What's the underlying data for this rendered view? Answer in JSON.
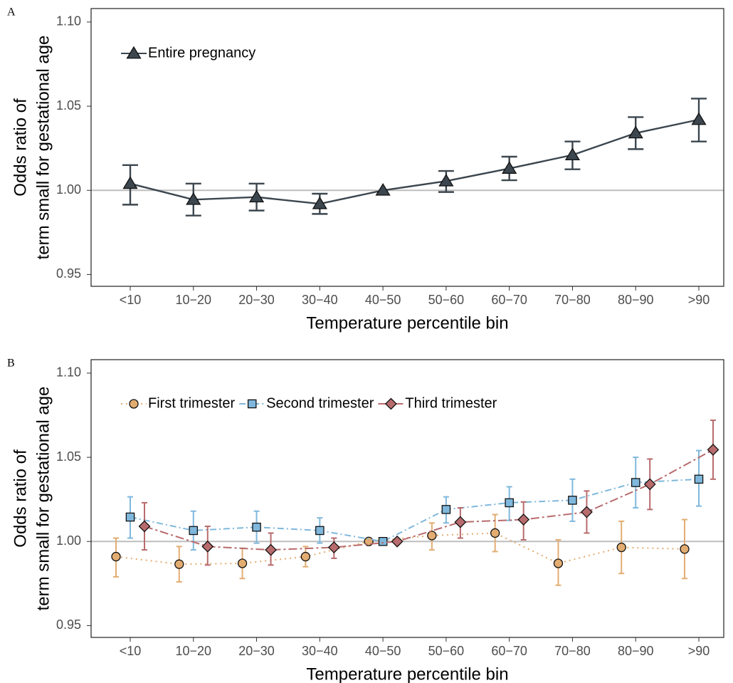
{
  "chart_data": [
    {
      "type": "line",
      "panel_label": "A",
      "xlabel": "Temperature percentile bin",
      "ylabel": [
        "Odds ratio of",
        "term small for gestational age"
      ],
      "categories": [
        "<10",
        "10−20",
        "20−30",
        "30−40",
        "40−50",
        "50−60",
        "60−70",
        "70−80",
        "80−90",
        ">90"
      ],
      "ylim": [
        0.943,
        1.108
      ],
      "yticks": [
        0.95,
        {
          "value": 1,
          "label": "1.00"
        },
        1.05,
        {
          "value": 1.1,
          "label": "1.10"
        }
      ],
      "hline": 1,
      "legend": "top-left",
      "series": [
        {
          "name": "Entire pregnancy",
          "color": "#3c464e",
          "marker": "triangle",
          "dash": "solid",
          "values": [
            1.004,
            0.9945,
            0.996,
            0.992,
            1.0,
            1.0055,
            1.013,
            1.021,
            1.034,
            1.042
          ],
          "lower": [
            0.9915,
            0.985,
            0.988,
            0.986,
            null,
            0.999,
            1.006,
            1.0125,
            1.0245,
            1.029
          ],
          "upper": [
            1.015,
            1.004,
            1.004,
            0.998,
            null,
            1.0115,
            1.02,
            1.029,
            1.0435,
            1.0545
          ]
        }
      ]
    },
    {
      "type": "line",
      "panel_label": "B",
      "xlabel": "Temperature percentile bin",
      "ylabel": [
        "Odds ratio of",
        "term small for gestational age"
      ],
      "categories": [
        "<10",
        "10−20",
        "20−30",
        "30−40",
        "40−50",
        "50−60",
        "60−70",
        "70−80",
        "80−90",
        ">90"
      ],
      "ylim": [
        0.943,
        1.108
      ],
      "yticks": [
        0.95,
        {
          "value": 1,
          "label": "1.00"
        },
        1.05,
        {
          "value": 1.1,
          "label": "1.10"
        }
      ],
      "hline": 1,
      "legend": "top-left",
      "series": [
        {
          "name": "First trimester",
          "color": "#e3ad72",
          "marker": "circle",
          "dash": "dotted",
          "values": [
            0.991,
            0.9865,
            0.987,
            0.991,
            1.0,
            1.0035,
            1.005,
            0.987,
            0.9965,
            0.9955
          ],
          "lower": [
            0.979,
            0.976,
            0.978,
            0.985,
            null,
            0.995,
            0.994,
            0.974,
            0.981,
            0.978
          ],
          "upper": [
            1.002,
            0.997,
            0.996,
            0.997,
            null,
            1.011,
            1.016,
            1.001,
            1.012,
            1.013
          ]
        },
        {
          "name": "Second trimester",
          "color": "#7fb8dc",
          "marker": "square",
          "dash": "dashdot",
          "values": [
            1.0145,
            1.0065,
            1.0085,
            1.0065,
            1.0,
            1.019,
            1.023,
            1.0245,
            1.035,
            1.037
          ],
          "lower": [
            1.002,
            0.995,
            0.999,
            0.999,
            null,
            1.011,
            1.0125,
            1.012,
            1.02,
            1.021
          ],
          "upper": [
            1.0265,
            1.018,
            1.018,
            1.014,
            null,
            1.0265,
            1.0325,
            1.037,
            1.05,
            1.054
          ]
        },
        {
          "name": "Third trimester",
          "color": "#b86b6d",
          "marker": "diamond",
          "dash": "longdashdot",
          "values": [
            1.009,
            0.997,
            0.995,
            0.9965,
            1.0,
            1.0115,
            1.013,
            1.0175,
            1.034,
            1.0545
          ],
          "lower": [
            0.995,
            0.986,
            0.986,
            0.99,
            null,
            1.002,
            1.001,
            1.005,
            1.019,
            1.037
          ],
          "upper": [
            1.023,
            1.009,
            1.005,
            1.002,
            null,
            1.02,
            1.0235,
            1.03,
            1.049,
            1.072
          ]
        }
      ]
    }
  ]
}
